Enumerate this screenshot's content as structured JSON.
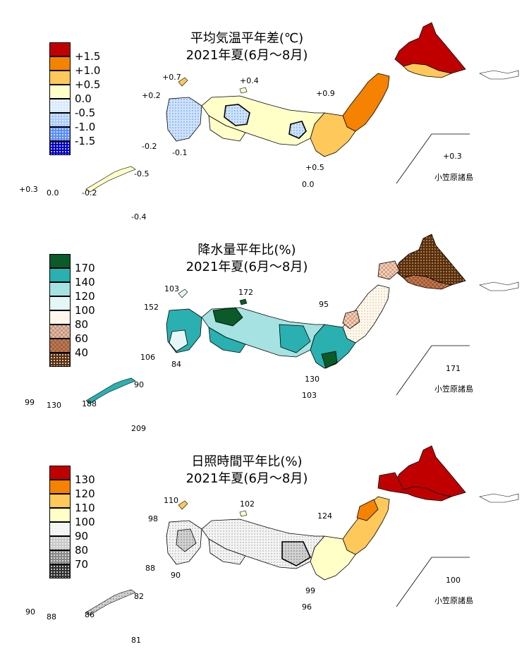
{
  "panels": [
    {
      "title1": "平均気温平年差(℃)",
      "title2": "2021年夏(6月～8月)",
      "legend": [
        {
          "label": "+1.5",
          "color": "#c00000",
          "pattern": "solid"
        },
        {
          "label": "+1.0",
          "color": "#f58200",
          "pattern": "solid"
        },
        {
          "label": "+0.5",
          "color": "#ffc85a",
          "pattern": "solid"
        },
        {
          "label": "0.0",
          "color": "#ffffc8",
          "pattern": "solid"
        },
        {
          "label": "-0.5",
          "color": "#d8eaff",
          "pattern": "dot"
        },
        {
          "label": "-1.0",
          "color": "#a9cbff",
          "pattern": "dot"
        },
        {
          "label": "-1.5",
          "color": "#5a8cff",
          "pattern": "dot"
        },
        {
          "label": "",
          "color": "#0000c8",
          "pattern": "dot"
        }
      ],
      "values": [
        "+0.7",
        "+0.4",
        "+0.2",
        "+0.9",
        "-0.2",
        "-0.1",
        "+0.5",
        "0.0",
        "+0.3",
        "0.0",
        "-0.2",
        "-0.5",
        "-0.4",
        "+0.3"
      ],
      "ogasawara": "小笠原諸島"
    },
    {
      "title1": "降水量平年比(%)",
      "title2": "2021年夏(6月～8月)",
      "legend": [
        {
          "label": "170",
          "color": "#0a5a2a",
          "pattern": "solid"
        },
        {
          "label": "140",
          "color": "#2ab0b0",
          "pattern": "solid"
        },
        {
          "label": "120",
          "color": "#a6e2e2",
          "pattern": "solid"
        },
        {
          "label": "100",
          "color": "#e4f6f6",
          "pattern": "solid"
        },
        {
          "label": "80",
          "color": "#fff6e8",
          "pattern": "dot"
        },
        {
          "label": "60",
          "color": "#e6b8a0",
          "pattern": "check"
        },
        {
          "label": "40",
          "color": "#c07850",
          "pattern": "check"
        },
        {
          "label": "",
          "color": "#5a2e0a",
          "pattern": "dot"
        }
      ],
      "values": [
        "103",
        "172",
        "152",
        "95",
        "106",
        "84",
        "130",
        "103",
        "99",
        "130",
        "188",
        "90",
        "209",
        "171"
      ],
      "ogasawara": "小笠原諸島"
    },
    {
      "title1": "日照時間平年比(%)",
      "title2": "2021年夏(6月～8月)",
      "legend": [
        {
          "label": "130",
          "color": "#c00000",
          "pattern": "solid"
        },
        {
          "label": "120",
          "color": "#f58200",
          "pattern": "solid"
        },
        {
          "label": "110",
          "color": "#ffc85a",
          "pattern": "solid"
        },
        {
          "label": "100",
          "color": "#ffffc8",
          "pattern": "solid"
        },
        {
          "label": "90",
          "color": "#f2f2f2",
          "pattern": "dot"
        },
        {
          "label": "80",
          "color": "#c8c8c8",
          "pattern": "dot"
        },
        {
          "label": "70",
          "color": "#888888",
          "pattern": "dot"
        },
        {
          "label": "",
          "color": "#303030",
          "pattern": "dot"
        }
      ],
      "values": [
        "110",
        "102",
        "98",
        "124",
        "88",
        "90",
        "99",
        "96",
        "90",
        "88",
        "86",
        "82",
        "81",
        "100"
      ],
      "ogasawara": "小笠原諸島"
    }
  ]
}
